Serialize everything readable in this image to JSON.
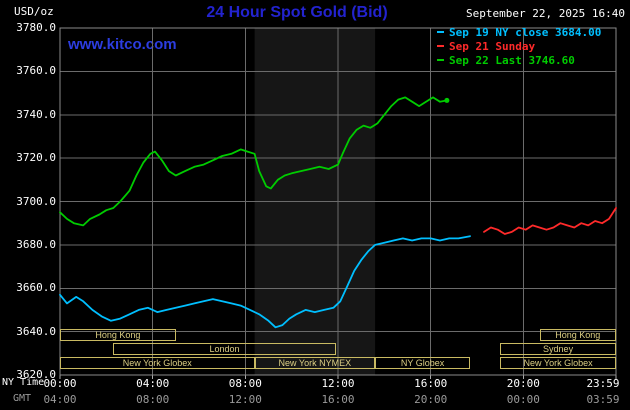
{
  "header": {
    "units_label": "USD/oz",
    "title": "24 Hour Spot Gold (Bid)",
    "datetime": "September 22, 2025 16:40",
    "watermark": "www.kitco.com"
  },
  "legend": [
    {
      "label": "Sep 19 NY close 3684.00",
      "color": "#00bfff"
    },
    {
      "label": "Sep 21 Sunday",
      "color": "#ff2a2a"
    },
    {
      "label": "Sep 22 Last 3746.60",
      "color": "#00cc00"
    }
  ],
  "axes": {
    "ny_time_label": "NY Time",
    "gmt_label": "GMT",
    "y_ticks": [
      3780,
      3760,
      3740,
      3720,
      3700,
      3680,
      3660,
      3640,
      3620
    ],
    "x_tick_hours": [
      0,
      4,
      8,
      12,
      16,
      20,
      24
    ],
    "ny_labels": [
      "00:00",
      "04:00",
      "08:00",
      "12:00",
      "16:00",
      "20:00",
      "23:59"
    ],
    "gmt_labels": [
      "04:00",
      "08:00",
      "12:00",
      "16:00",
      "20:00",
      "00:00",
      "03:59"
    ]
  },
  "sessions": [
    {
      "row": 1,
      "start": 0,
      "end": 5,
      "label": "Hong Kong"
    },
    {
      "row": 1,
      "start": 20.7,
      "end": 24,
      "label": "Hong Kong"
    },
    {
      "row": 2,
      "start": 2.3,
      "end": 11.9,
      "label": "London"
    },
    {
      "row": 2,
      "start": 19,
      "end": 24,
      "label": "Sydney"
    },
    {
      "row": 3,
      "start": 0,
      "end": 8.4,
      "label": "New York Globex"
    },
    {
      "row": 3,
      "start": 8.4,
      "end": 13.6,
      "label": "New York NYMEX"
    },
    {
      "row": 3,
      "start": 13.6,
      "end": 17.7,
      "label": "NY Globex"
    },
    {
      "row": 3,
      "start": 19,
      "end": 24,
      "label": "New York Globex"
    }
  ],
  "chart_data": {
    "type": "line",
    "title": "24 Hour Spot Gold (Bid)",
    "xlabel": "NY Time",
    "ylabel": "USD/oz",
    "ylim": [
      3620,
      3780
    ],
    "xlim_hours": [
      0,
      24
    ],
    "grid": true,
    "shaded_band_hours": [
      8.4,
      13.6
    ],
    "series": [
      {
        "name": "Sep 19 NY close 3684.00",
        "color": "#00bfff",
        "end_dot": false,
        "x": [
          0,
          0.3,
          0.7,
          1.0,
          1.4,
          1.8,
          2.2,
          2.6,
          3.0,
          3.4,
          3.8,
          4.2,
          4.6,
          5.0,
          5.4,
          5.8,
          6.2,
          6.6,
          7.0,
          7.4,
          7.8,
          8.2,
          8.6,
          9.0,
          9.3,
          9.6,
          9.9,
          10.2,
          10.6,
          11.0,
          11.4,
          11.8,
          12.1,
          12.4,
          12.7,
          13.0,
          13.3,
          13.6,
          14.0,
          14.4,
          14.8,
          15.2,
          15.6,
          16.0,
          16.4,
          16.8,
          17.2,
          17.7
        ],
        "y": [
          3657,
          3653,
          3656,
          3654,
          3650,
          3647,
          3645,
          3646,
          3648,
          3650,
          3651,
          3649,
          3650,
          3651,
          3652,
          3653,
          3654,
          3655,
          3654,
          3653,
          3652,
          3650,
          3648,
          3645,
          3642,
          3643,
          3646,
          3648,
          3650,
          3649,
          3650,
          3651,
          3654,
          3661,
          3668,
          3673,
          3677,
          3680,
          3681,
          3682,
          3683,
          3682,
          3683,
          3683,
          3682,
          3683,
          3683,
          3684
        ]
      },
      {
        "name": "Sep 21 Sunday",
        "color": "#ff2a2a",
        "end_dot": false,
        "x": [
          18.3,
          18.6,
          18.9,
          19.2,
          19.5,
          19.8,
          20.1,
          20.4,
          20.7,
          21.0,
          21.3,
          21.6,
          21.9,
          22.2,
          22.5,
          22.8,
          23.1,
          23.4,
          23.7,
          24.0
        ],
        "y": [
          3686,
          3688,
          3687,
          3685,
          3686,
          3688,
          3687,
          3689,
          3688,
          3687,
          3688,
          3690,
          3689,
          3688,
          3690,
          3689,
          3691,
          3690,
          3692,
          3697
        ]
      },
      {
        "name": "Sep 22 Last 3746.60",
        "color": "#00cc00",
        "end_dot": true,
        "x": [
          0,
          0.3,
          0.6,
          1.0,
          1.3,
          1.7,
          2.0,
          2.3,
          2.6,
          3.0,
          3.3,
          3.6,
          3.9,
          4.1,
          4.4,
          4.7,
          5.0,
          5.4,
          5.8,
          6.2,
          6.6,
          7.0,
          7.4,
          7.8,
          8.1,
          8.4,
          8.6,
          8.9,
          9.1,
          9.4,
          9.7,
          10.0,
          10.4,
          10.8,
          11.2,
          11.6,
          12.0,
          12.2,
          12.5,
          12.8,
          13.1,
          13.4,
          13.7,
          14.0,
          14.3,
          14.6,
          14.9,
          15.2,
          15.5,
          15.8,
          16.1,
          16.4,
          16.7
        ],
        "y": [
          3695,
          3692,
          3690,
          3689,
          3692,
          3694,
          3696,
          3697,
          3700,
          3705,
          3712,
          3718,
          3722,
          3723,
          3719,
          3714,
          3712,
          3714,
          3716,
          3717,
          3719,
          3721,
          3722,
          3724,
          3723,
          3722,
          3714,
          3707,
          3706,
          3710,
          3712,
          3713,
          3714,
          3715,
          3716,
          3715,
          3717,
          3722,
          3729,
          3733,
          3735,
          3734,
          3736,
          3740,
          3744,
          3747,
          3748,
          3746,
          3744,
          3746,
          3748,
          3746,
          3746.6
        ]
      }
    ]
  }
}
